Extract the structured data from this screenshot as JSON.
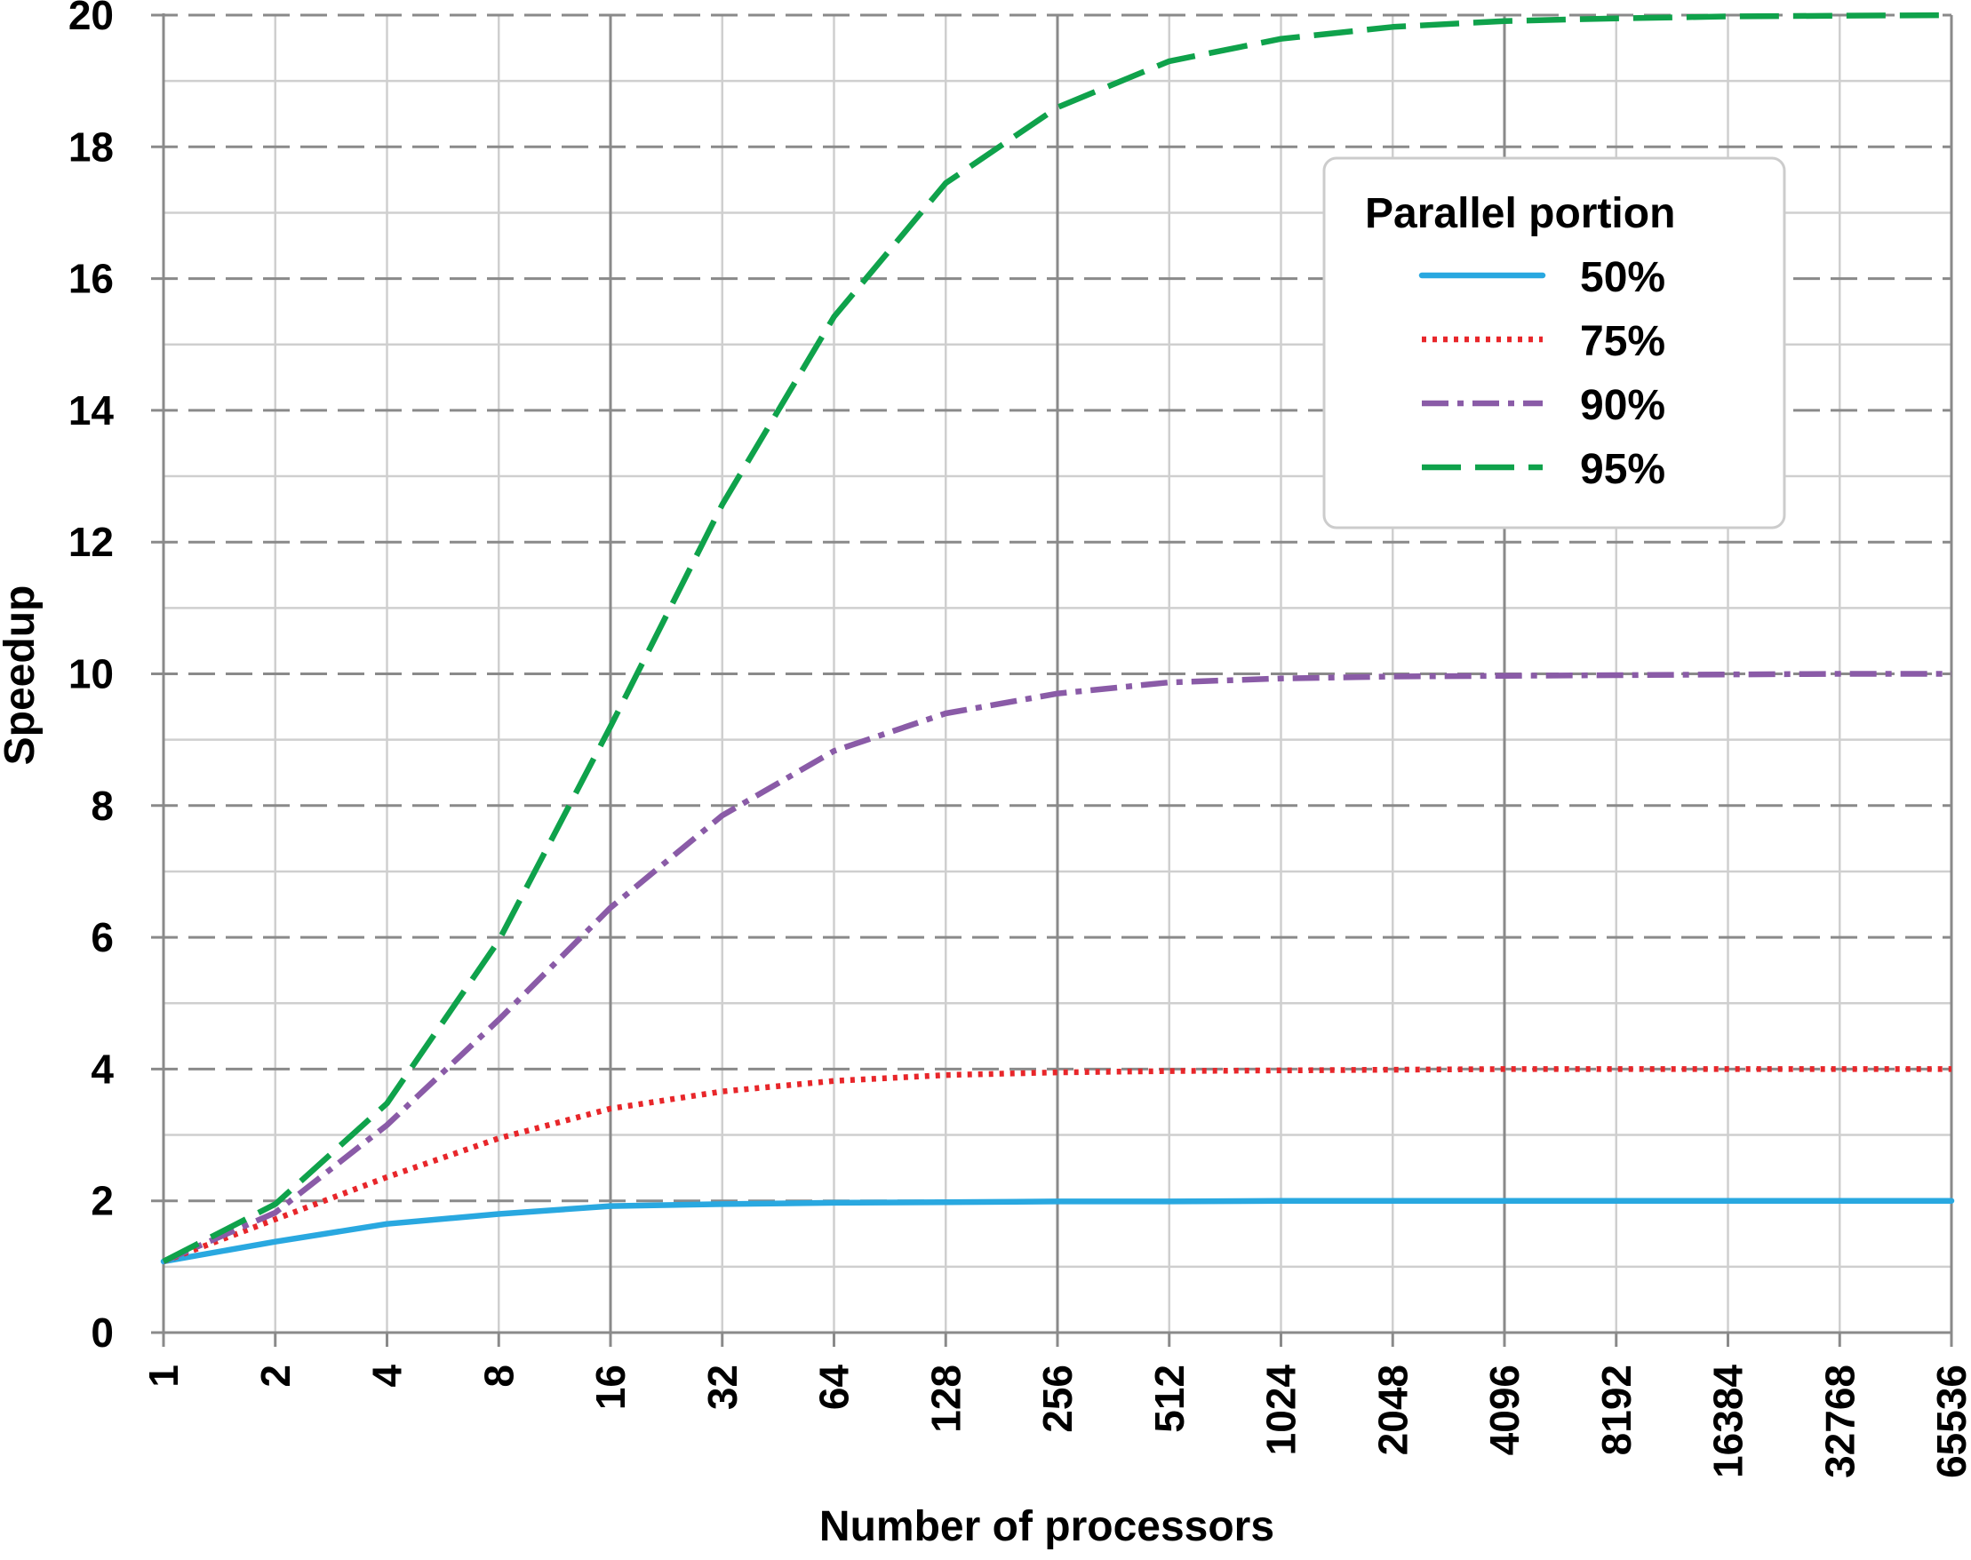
{
  "chart_data": {
    "type": "line",
    "title": "",
    "xlabel": "Number of processors",
    "ylabel": "Speedup",
    "x_scale": "log2",
    "x": [
      1,
      2,
      4,
      8,
      16,
      32,
      64,
      128,
      256,
      512,
      1024,
      2048,
      4096,
      8192,
      16384,
      32768,
      65536
    ],
    "x_tick_labels": [
      "1",
      "2",
      "4",
      "8",
      "16",
      "32",
      "64",
      "128",
      "256",
      "512",
      "1024",
      "2048",
      "4096",
      "8192",
      "16384",
      "32768",
      "65536"
    ],
    "ylim": [
      0,
      20
    ],
    "y_ticks": [
      0,
      2,
      4,
      6,
      8,
      10,
      12,
      14,
      16,
      18,
      20
    ],
    "y_tick_labels": [
      "0",
      "2",
      "4",
      "6",
      "8",
      "10",
      "12",
      "14",
      "16",
      "18",
      "20"
    ],
    "grid": true,
    "legend": {
      "title": "Parallel portion",
      "position": "top-right"
    },
    "series": [
      {
        "name": "50%",
        "color": "#29a8e0",
        "style": "solid",
        "values": [
          1.08,
          1.38,
          1.65,
          1.8,
          1.92,
          1.95,
          1.97,
          1.98,
          1.99,
          1.99,
          2.0,
          2.0,
          2.0,
          2.0,
          2.0,
          2.0,
          2.0
        ]
      },
      {
        "name": "75%",
        "color": "#e8262a",
        "style": "dotted",
        "values": [
          1.08,
          1.72,
          2.36,
          2.95,
          3.4,
          3.66,
          3.82,
          3.91,
          3.95,
          3.97,
          3.98,
          3.99,
          4.0,
          4.0,
          4.0,
          4.0,
          4.0
        ]
      },
      {
        "name": "90%",
        "color": "#8a5ba7",
        "style": "dashdot",
        "values": [
          1.08,
          1.82,
          3.15,
          4.75,
          6.45,
          7.85,
          8.83,
          9.4,
          9.7,
          9.87,
          9.93,
          9.96,
          9.97,
          9.98,
          9.99,
          10.0,
          10.0
        ]
      },
      {
        "name": "95%",
        "color": "#0fa24b",
        "style": "dashed",
        "values": [
          1.08,
          1.95,
          3.48,
          5.95,
          9.2,
          12.57,
          15.42,
          17.45,
          18.6,
          19.3,
          19.64,
          19.82,
          19.91,
          19.95,
          19.98,
          19.99,
          20.0
        ]
      }
    ]
  }
}
